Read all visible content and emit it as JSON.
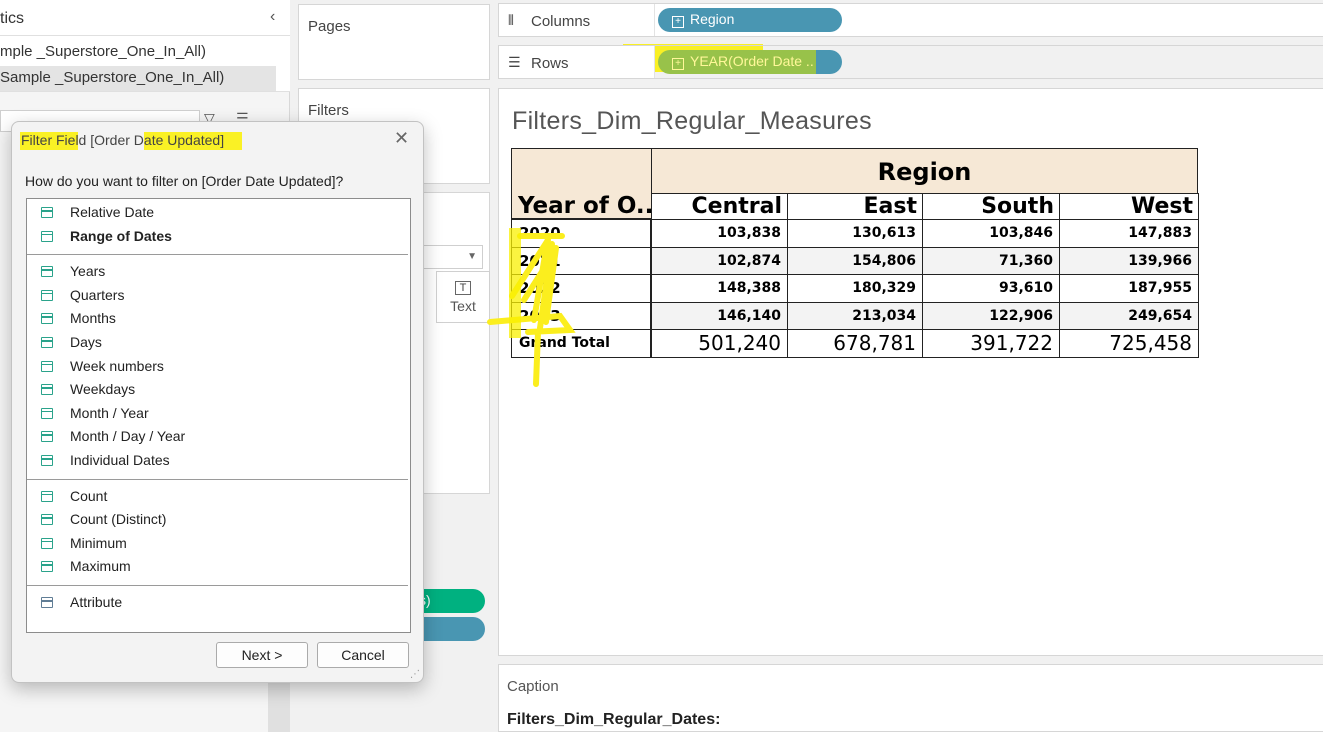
{
  "data_pane": {
    "title_fragment": "tics",
    "collapse_icon": "chevron-left-icon",
    "datasources": [
      "mple _Superstore_One_In_All)",
      "Sample _Superstore_One_In_All)"
    ]
  },
  "cards": {
    "pages_title": "Pages",
    "filters_title": "Filters",
    "marks_text_label": "Text",
    "pill_green_fragment": "s)"
  },
  "columns_shelf": {
    "label": "Columns",
    "pill": "Region"
  },
  "rows_shelf": {
    "label": "Rows",
    "pill": "YEAR(Order Date .."
  },
  "view": {
    "title": "Filters_Dim_Regular_Measures"
  },
  "chart_data": {
    "type": "table",
    "column_header": "Region",
    "row_header": "Year of O..",
    "columns": [
      "Central",
      "East",
      "South",
      "West"
    ],
    "rows": [
      {
        "label": "2020",
        "values": [
          "103,838",
          "130,613",
          "103,846",
          "147,883"
        ]
      },
      {
        "label": "2021",
        "values": [
          "102,874",
          "154,806",
          "71,360",
          "139,966"
        ]
      },
      {
        "label": "2022",
        "values": [
          "148,388",
          "180,329",
          "93,610",
          "187,955"
        ]
      },
      {
        "label": "2023",
        "values": [
          "146,140",
          "213,034",
          "122,906",
          "249,654"
        ]
      }
    ],
    "total": {
      "label": "Grand Total",
      "values": [
        "501,240",
        "678,781",
        "391,722",
        "725,458"
      ]
    },
    "header_fill": "#f6e8d6"
  },
  "caption": {
    "title": "Caption",
    "text": "Filters_Dim_Regular_Dates:"
  },
  "dialog": {
    "title": "Filter Field [Order Date Updated]",
    "question": "How do you want to filter on [Order Date Updated]?",
    "groups": [
      {
        "items": [
          {
            "label": "Relative Date",
            "bold": false
          },
          {
            "label": "Range of Dates",
            "bold": true
          }
        ]
      },
      {
        "items": [
          {
            "label": "Years",
            "bold": false
          },
          {
            "label": "Quarters",
            "bold": false
          },
          {
            "label": "Months",
            "bold": false
          },
          {
            "label": "Days",
            "bold": false
          },
          {
            "label": "Week numbers",
            "bold": false
          },
          {
            "label": "Weekdays",
            "bold": false
          },
          {
            "label": "Month / Year",
            "bold": false
          },
          {
            "label": "Month / Day / Year",
            "bold": false
          },
          {
            "label": "Individual Dates",
            "bold": false
          }
        ]
      },
      {
        "items": [
          {
            "label": "Count",
            "bold": false
          },
          {
            "label": "Count (Distinct)",
            "bold": false
          },
          {
            "label": "Minimum",
            "bold": false
          },
          {
            "label": "Maximum",
            "bold": false
          }
        ]
      },
      {
        "items": [
          {
            "label": "Attribute",
            "bold": false,
            "icon": "gray"
          }
        ]
      }
    ],
    "next_label": "Next >",
    "cancel_label": "Cancel"
  },
  "colors": {
    "pill_blue": "#4996b2",
    "pill_green": "#00b180",
    "highlight": "#faf000",
    "calendar_icon": "#2aa38b"
  }
}
